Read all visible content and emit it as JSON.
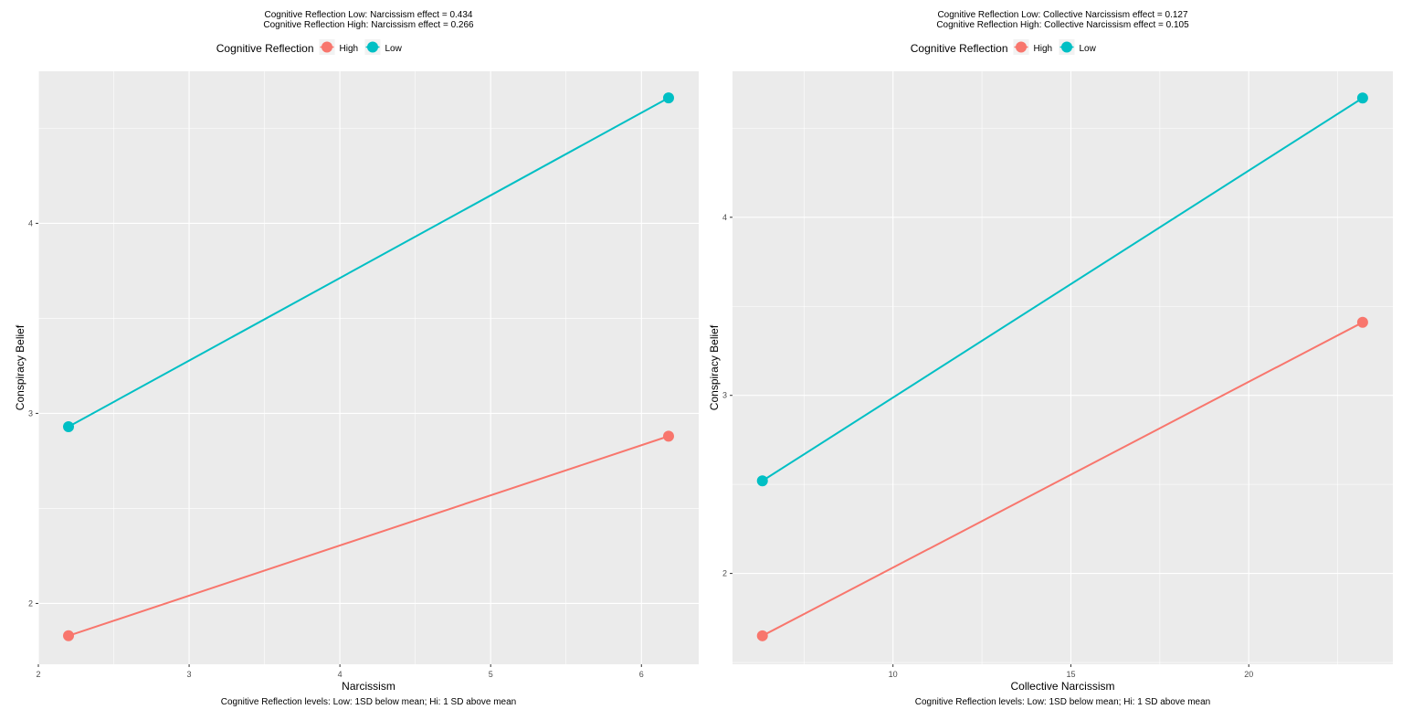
{
  "chart_data": [
    {
      "type": "line",
      "subtitle_lines": [
        "Cognitive Reflection Low: Narcissism effect = 0.434",
        "Cognitive Reflection High: Narcissism effect = 0.266"
      ],
      "legend": {
        "title": "Cognitive Reflection",
        "position": "top",
        "entries": [
          "High",
          "Low"
        ]
      },
      "xlabel": "Narcissism",
      "ylabel": "Conspiracy Belief",
      "caption": "Cognitive Reflection levels: Low: 1SD below mean; Hi: 1 SD above mean",
      "xlim": [
        2.0,
        6.38
      ],
      "ylim": [
        1.68,
        4.8
      ],
      "xticks": [
        2,
        3,
        4,
        5,
        6
      ],
      "yticks": [
        2,
        3,
        4
      ],
      "grid": true,
      "series": [
        {
          "name": "High",
          "color": "#F8766D",
          "x": [
            2.2,
            6.18
          ],
          "y": [
            1.83,
            2.88
          ]
        },
        {
          "name": "Low",
          "color": "#00BFC4",
          "x": [
            2.2,
            6.18
          ],
          "y": [
            2.93,
            4.66
          ]
        }
      ]
    },
    {
      "type": "line",
      "subtitle_lines": [
        "Cognitive Reflection Low: Collective Narcissism effect = 0.127",
        "Cognitive Reflection High: Collective Narcissism effect = 0.105"
      ],
      "legend": {
        "title": "Cognitive Reflection",
        "position": "top",
        "entries": [
          "High",
          "Low"
        ]
      },
      "xlabel": "Collective Narcissism",
      "ylabel": "Conspiracy Belief",
      "caption": "Cognitive Reflection levels: Low: 1SD below mean; Hi: 1 SD above mean",
      "xlim": [
        5.49,
        24.05
      ],
      "ylim": [
        1.49,
        4.82
      ],
      "xticks": [
        10,
        15,
        20
      ],
      "yticks": [
        2,
        3,
        4
      ],
      "grid": true,
      "series": [
        {
          "name": "High",
          "color": "#F8766D",
          "x": [
            6.33,
            23.2
          ],
          "y": [
            1.65,
            3.41
          ]
        },
        {
          "name": "Low",
          "color": "#00BFC4",
          "x": [
            6.33,
            23.2
          ],
          "y": [
            2.52,
            4.67
          ]
        }
      ]
    }
  ]
}
